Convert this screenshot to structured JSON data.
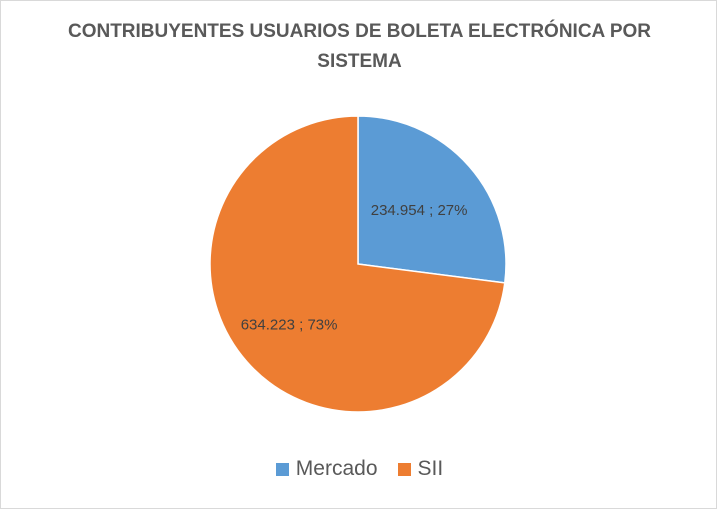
{
  "chart_data": {
    "type": "pie",
    "title": "CONTRIBUYENTES USUARIOS DE BOLETA ELECTRÓNICA POR SISTEMA",
    "slices": [
      {
        "name": "Mercado",
        "value": 234954,
        "label": "234.954 ; 27%",
        "color": "#5b9bd5"
      },
      {
        "name": "SII",
        "value": 634223,
        "label": "634.223 ; 73%",
        "color": "#ed7d31"
      }
    ],
    "legend_position": "bottom",
    "start_angle": "12 o'clock, clockwise"
  }
}
